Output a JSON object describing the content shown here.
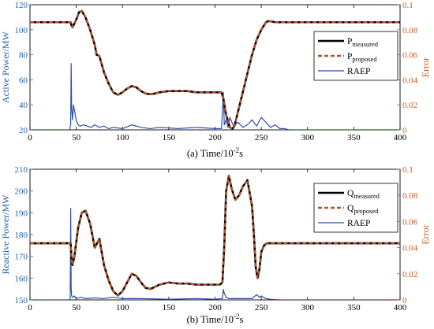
{
  "colors": {
    "measured": "#000000",
    "proposed": "#b5532b",
    "raep": "#2c4ea6",
    "left_axis": "#1f5fa8",
    "right_axis": "#c25b22",
    "axis": "#000000"
  },
  "chart_data": [
    {
      "type": "line",
      "caption": "(a) Time/10",
      "caption_sup": "-2",
      "caption_unit": "s",
      "ylabel": "Active Power/MW",
      "y2label": "Error",
      "xlim": [
        0,
        400
      ],
      "ylim": [
        20,
        120
      ],
      "y2lim": [
        0,
        0.1
      ],
      "xticks": [
        0,
        50,
        100,
        150,
        200,
        250,
        300,
        350,
        400
      ],
      "yticks": [
        20,
        40,
        60,
        80,
        100,
        120
      ],
      "y2ticks": [
        0,
        0.02,
        0.04,
        0.06,
        0.08,
        0.1
      ],
      "xtick_labels": [
        "0",
        "50",
        "100",
        "150",
        "200",
        "250",
        "300",
        "350",
        "400"
      ],
      "ytick_labels": [
        "20",
        "40",
        "60",
        "80",
        "100",
        "120"
      ],
      "y2tick_labels": [
        "0",
        "0.02",
        "0.04",
        "0.06",
        "0.08",
        "0.1"
      ],
      "grid": false,
      "legend_position": "top-right",
      "legend": [
        {
          "base": "P",
          "sub": "measured",
          "style": "solid-black"
        },
        {
          "base": "P",
          "sub": "proposed",
          "style": "dashed"
        },
        {
          "base": "RAEP",
          "sub": "",
          "style": "solid-blue"
        }
      ],
      "series": [
        {
          "name": "Pmeasured",
          "axis": "left",
          "x": [
            0,
            44,
            45,
            46,
            50,
            53,
            56,
            60,
            65,
            70,
            72,
            75,
            80,
            85,
            90,
            95,
            100,
            105,
            110,
            115,
            120,
            125,
            130,
            135,
            140,
            150,
            160,
            170,
            180,
            190,
            200,
            207,
            209,
            212,
            216,
            219,
            221,
            225,
            230,
            235,
            240,
            245,
            250,
            255,
            258,
            262,
            265,
            270,
            280,
            300,
            350,
            400
          ],
          "y": [
            106,
            106,
            103,
            102,
            108,
            114,
            115,
            110,
            100,
            88,
            80,
            79,
            66,
            57,
            50,
            48,
            50,
            53,
            55,
            54,
            51,
            49,
            48.5,
            49,
            50,
            51,
            51,
            51,
            50,
            50,
            50,
            50,
            45,
            32,
            22,
            21,
            23,
            35,
            50,
            65,
            80,
            92,
            100,
            106,
            107,
            106.5,
            106,
            106,
            106,
            106,
            106,
            106
          ]
        },
        {
          "name": "Pproposed",
          "axis": "left",
          "x": [
            0,
            44,
            45,
            46,
            50,
            53,
            56,
            60,
            65,
            70,
            72,
            75,
            80,
            85,
            90,
            95,
            100,
            105,
            110,
            115,
            120,
            125,
            130,
            135,
            140,
            150,
            160,
            170,
            180,
            190,
            200,
            207,
            209,
            212,
            216,
            219,
            221,
            225,
            230,
            235,
            240,
            245,
            250,
            255,
            258,
            262,
            265,
            270,
            280,
            300,
            350,
            400
          ],
          "y": [
            106,
            106,
            103,
            102,
            108,
            114,
            115,
            110,
            100,
            88,
            80,
            79,
            66,
            57,
            50,
            48,
            50,
            53,
            55,
            54,
            51,
            49,
            48.5,
            49,
            50,
            51,
            51,
            51,
            50,
            50,
            50,
            50,
            45,
            32,
            22,
            21,
            23,
            35,
            50,
            65,
            80,
            92,
            100,
            106,
            107,
            106.5,
            106,
            106,
            106,
            106,
            106,
            106
          ]
        },
        {
          "name": "RAEP",
          "axis": "right",
          "x": [
            0,
            42,
            43,
            44,
            44.5,
            45,
            46,
            47,
            48,
            50,
            52,
            54,
            58,
            62,
            66,
            70,
            75,
            80,
            85,
            90,
            95,
            100,
            110,
            120,
            130,
            140,
            160,
            180,
            200,
            207,
            209,
            210,
            212,
            214,
            216,
            220,
            225,
            230,
            235,
            240,
            245,
            250,
            255,
            260,
            265,
            270,
            275,
            280,
            300,
            350,
            400
          ],
          "y": [
            0,
            0,
            0,
            0.005,
            0.053,
            0.018,
            0.008,
            0.02,
            0.016,
            0.008,
            0.004,
            0.003,
            0.004,
            0.003,
            0.002,
            0.004,
            0.002,
            0.003,
            0.001,
            0.002,
            0.0015,
            0.001,
            0.004,
            0.002,
            0.001,
            0.002,
            0.001,
            0.002,
            0.001,
            0.001,
            0.03,
            0.004,
            0.008,
            0.002,
            0.01,
            0.003,
            0.006,
            0.002,
            0.004,
            0.008,
            0.003,
            0.01,
            0.006,
            0.002,
            0.004,
            0.001,
            0.001,
            0,
            0,
            0,
            0
          ]
        }
      ]
    },
    {
      "type": "line",
      "caption": "(b) Time/10",
      "caption_sup": "-2",
      "caption_unit": "s",
      "ylabel": "Reactive Power/MW",
      "y2label": "Error",
      "xlim": [
        0,
        400
      ],
      "ylim": [
        150,
        210
      ],
      "y2lim": [
        0,
        0.1
      ],
      "xticks": [
        0,
        50,
        100,
        150,
        200,
        250,
        300,
        350,
        400
      ],
      "yticks": [
        150,
        160,
        170,
        180,
        190,
        200,
        210
      ],
      "y2ticks": [
        0,
        0.02,
        0.04,
        0.06,
        0.08,
        0.1
      ],
      "xtick_labels": [
        "0",
        "50",
        "100",
        "150",
        "200",
        "250",
        "300",
        "350",
        "400"
      ],
      "ytick_labels": [
        "150",
        "160",
        "170",
        "180",
        "190",
        "200",
        "210"
      ],
      "y2tick_labels": [
        "0",
        "0.02",
        "0.04",
        "0.06",
        "0.08",
        "0.1"
      ],
      "grid": false,
      "legend_position": "top-right",
      "legend": [
        {
          "base": "Q",
          "sub": "measured",
          "style": "solid-black"
        },
        {
          "base": "Q",
          "sub": "proposed",
          "style": "dashed"
        },
        {
          "base": "RAEP",
          "sub": "",
          "style": "solid-blue"
        }
      ],
      "series": [
        {
          "name": "Qmeasured",
          "axis": "left",
          "x": [
            0,
            44,
            45,
            46,
            48,
            52,
            56,
            60,
            65,
            70,
            75,
            80,
            85,
            90,
            95,
            100,
            105,
            110,
            115,
            120,
            125,
            130,
            135,
            140,
            145,
            150,
            160,
            170,
            180,
            190,
            200,
            205,
            208,
            210,
            212,
            215,
            218,
            222,
            226,
            230,
            235,
            240,
            242,
            244,
            246,
            248,
            250,
            253,
            256,
            260,
            270,
            300,
            350,
            400
          ],
          "y": [
            176,
            176,
            168,
            166,
            170,
            183,
            190,
            191,
            185,
            174,
            178,
            166,
            159,
            154,
            152,
            154,
            158,
            162,
            161,
            158,
            155.5,
            155,
            156,
            157,
            157.5,
            158,
            157.5,
            157.5,
            157,
            157,
            157,
            157,
            158,
            175,
            200,
            207,
            201,
            196,
            198,
            202,
            205,
            193,
            180,
            165,
            160,
            164,
            172,
            175,
            176,
            176,
            176,
            176,
            176,
            176
          ]
        },
        {
          "name": "Qproposed",
          "axis": "left",
          "x": [
            0,
            44,
            45,
            46,
            48,
            52,
            56,
            60,
            65,
            70,
            75,
            80,
            85,
            90,
            95,
            100,
            105,
            110,
            115,
            120,
            125,
            130,
            135,
            140,
            145,
            150,
            160,
            170,
            180,
            190,
            200,
            205,
            208,
            210,
            212,
            215,
            218,
            222,
            226,
            230,
            235,
            240,
            242,
            244,
            246,
            248,
            250,
            253,
            256,
            260,
            270,
            300,
            350,
            400
          ],
          "y": [
            176,
            176,
            168,
            166,
            170,
            183,
            190,
            191,
            185,
            174,
            178,
            166,
            159,
            154,
            152,
            154,
            158,
            162,
            161,
            158,
            155.5,
            155,
            156,
            157,
            157.5,
            158,
            157.5,
            157.5,
            157,
            157,
            157,
            157,
            158,
            175,
            200,
            207,
            201,
            196,
            198,
            202,
            205,
            193,
            180,
            165,
            160,
            164,
            172,
            175,
            176,
            176,
            176,
            176,
            176,
            176
          ]
        },
        {
          "name": "RAEP",
          "axis": "right",
          "x": [
            0,
            43,
            43.5,
            44,
            44.5,
            45,
            46,
            48,
            50,
            55,
            60,
            70,
            80,
            90,
            100,
            120,
            150,
            180,
            200,
            208,
            209,
            210,
            212,
            215,
            220,
            230,
            240,
            245,
            248,
            250,
            255,
            260,
            270,
            300,
            350,
            400
          ],
          "y": [
            0,
            0,
            0.002,
            0.07,
            0.01,
            0.003,
            0.002,
            0.003,
            0.001,
            0.002,
            0.001,
            0.0015,
            0.001,
            0.002,
            0.001,
            0.001,
            0.0005,
            0.001,
            0.0005,
            0.001,
            0.008,
            0.005,
            0.002,
            0.001,
            0.001,
            0.001,
            0.001,
            0.004,
            0.002,
            0.003,
            0.001,
            0.0005,
            0,
            0,
            0,
            0
          ]
        }
      ]
    }
  ]
}
